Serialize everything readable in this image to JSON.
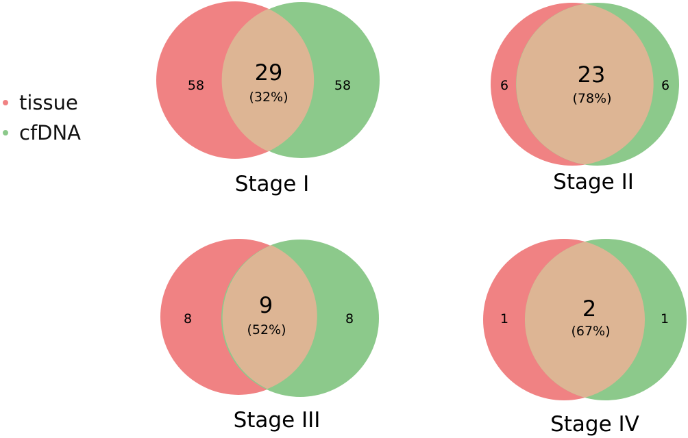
{
  "legend": [
    {
      "label": "tissue",
      "color": "#f08283"
    },
    {
      "label": "cfDNA",
      "color": "#8cc98b"
    }
  ],
  "colors": {
    "tissue": "#f08283",
    "cfDNA": "#8cc98b",
    "overlap": "#ddb594"
  },
  "venns": [
    {
      "stage": "Stage I",
      "tissue_only": "58",
      "cfdna_only": "58",
      "overlap": "29",
      "overlap_pct": "(32%)"
    },
    {
      "stage": "Stage II",
      "tissue_only": "6",
      "cfdna_only": "6",
      "overlap": "23",
      "overlap_pct": "(78%)"
    },
    {
      "stage": "Stage III",
      "tissue_only": "8",
      "cfdna_only": "8",
      "overlap": "9",
      "overlap_pct": "(52%)"
    },
    {
      "stage": "Stage IV",
      "tissue_only": "1",
      "cfdna_only": "1",
      "overlap": "2",
      "overlap_pct": "(67%)"
    }
  ]
}
